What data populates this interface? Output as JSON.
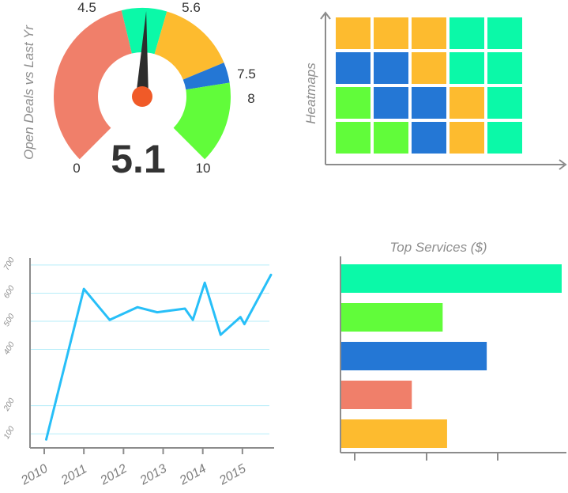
{
  "colors": {
    "teal": "#0bf9a8",
    "green": "#61fc3a",
    "blue": "#2477d5",
    "salmon": "#f07f6a",
    "orange": "#fdbb2f",
    "line": "#27bff8",
    "axis": "#8c8c8c",
    "grid": "#b6edf9",
    "needle": "#2d2d2d",
    "pivot": "#f05a28"
  },
  "chart_data": [
    {
      "type": "gauge",
      "ylabel": "Open Deals vs Last Yr",
      "value": 5.1,
      "value_label": "5.1",
      "min": 0,
      "max": 10,
      "bands": [
        {
          "from": 0,
          "to": 4.5,
          "color": "salmon"
        },
        {
          "from": 4.5,
          "to": 5.6,
          "color": "teal"
        },
        {
          "from": 5.6,
          "to": 7.5,
          "color": "orange"
        },
        {
          "from": 7.5,
          "to": 8,
          "color": "blue"
        },
        {
          "from": 8,
          "to": 10,
          "color": "green"
        }
      ],
      "tick_labels": [
        "0",
        "4.5",
        "5.6",
        "7.5",
        "8",
        "10"
      ]
    },
    {
      "type": "heatmap",
      "ylabel": "Heatmaps",
      "rows": 4,
      "cols": 5,
      "cells": [
        [
          "orange",
          "orange",
          "orange",
          "teal",
          "teal"
        ],
        [
          "blue",
          "blue",
          "orange",
          "teal",
          "teal"
        ],
        [
          "green",
          "blue",
          "blue",
          "orange",
          "teal"
        ],
        [
          "green",
          "green",
          "blue",
          "orange",
          "teal"
        ]
      ]
    },
    {
      "type": "line",
      "xlim": [
        2010,
        2015.8
      ],
      "ylim": [
        50,
        725
      ],
      "x_ticks": [
        2010,
        2011,
        2012,
        2013,
        2014,
        2015
      ],
      "x_tick_labels": [
        "2010",
        "2011",
        "2012",
        "2013",
        "2014",
        "2015"
      ],
      "y_ticks": [
        100,
        200,
        400,
        500,
        600,
        700
      ],
      "y_tick_labels": [
        "100",
        "200",
        "400",
        "500",
        "600",
        "700"
      ],
      "series": [
        {
          "x": [
            2010.05,
            2011.0,
            2011.65,
            2012.35,
            2012.85,
            2013.55,
            2013.75,
            2014.05,
            2014.45,
            2014.95,
            2015.05,
            2015.72
          ],
          "y": [
            80,
            615,
            505,
            550,
            532,
            545,
            505,
            637,
            452,
            515,
            490,
            665
          ]
        }
      ]
    },
    {
      "type": "bar",
      "orientation": "horizontal",
      "title": "Top Services ($)",
      "xlim": [
        0,
        100
      ],
      "values": [
        100,
        46,
        66,
        32,
        48
      ],
      "bar_colors": [
        "teal",
        "green",
        "blue",
        "salmon",
        "orange"
      ]
    }
  ]
}
